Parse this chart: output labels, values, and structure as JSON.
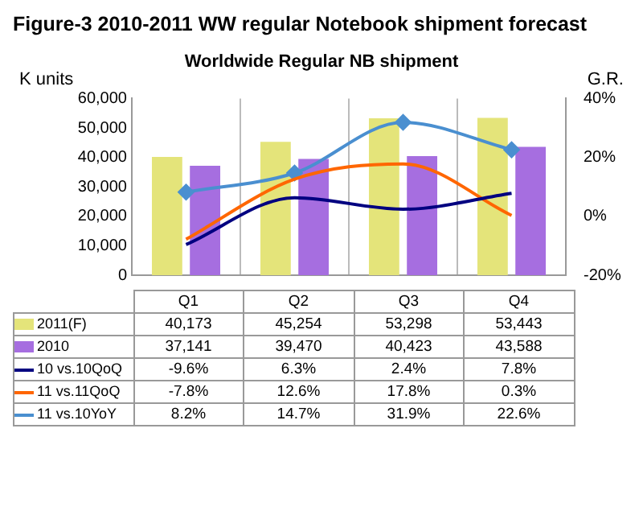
{
  "chart_data": {
    "type": "bar",
    "title": "Figure-3 2010-2011 WW regular Notebook shipment forecast",
    "subtitle": "Worldwide Regular NB shipment",
    "ylabel": "K units",
    "y2label": "G.R.",
    "categories": [
      "Q1",
      "Q2",
      "Q3",
      "Q4"
    ],
    "series": [
      {
        "name": "2011(F)",
        "color": "#e4e47a",
        "values": [
          40173,
          45254,
          53298,
          53443
        ],
        "value_labels": [
          "40,173",
          "45,254",
          "53,298",
          "53,443"
        ]
      },
      {
        "name": "2010",
        "color": "#a66ee0",
        "values": [
          37141,
          39470,
          40423,
          43588
        ],
        "value_labels": [
          "37,141",
          "39,470",
          "40,423",
          "43,588"
        ]
      },
      {
        "name": "10 vs.10QoQ",
        "type": "line",
        "axis": "y2",
        "marker": "none",
        "color": "#000080",
        "values": [
          -9.6,
          6.3,
          2.4,
          7.8
        ],
        "value_labels": [
          "-9.6%",
          "6.3%",
          "2.4%",
          "7.8%"
        ]
      },
      {
        "name": "11 vs.11QoQ",
        "type": "line",
        "axis": "y2",
        "marker": "none",
        "color": "#ff6600",
        "values": [
          -7.8,
          12.6,
          17.8,
          0.3
        ],
        "value_labels": [
          "-7.8%",
          "12.6%",
          "17.8%",
          "0.3%"
        ]
      },
      {
        "name": "11 vs.10YoY",
        "type": "line",
        "axis": "y2",
        "marker": "diamond",
        "color": "#4a8fd0",
        "values": [
          8.2,
          14.7,
          31.9,
          22.6
        ],
        "value_labels": [
          "8.2%",
          "14.7%",
          "31.9%",
          "22.6%"
        ]
      }
    ],
    "ylim": [
      0,
      60000
    ],
    "yticks": [
      {
        "value": 0,
        "label": "0"
      },
      {
        "value": 10000,
        "label": "10,000"
      },
      {
        "value": 20000,
        "label": "20,000"
      },
      {
        "value": 30000,
        "label": "30,000"
      },
      {
        "value": 40000,
        "label": "40,000"
      },
      {
        "value": 50000,
        "label": "50,000"
      },
      {
        "value": 60000,
        "label": "60,000"
      }
    ],
    "y2lim": [
      -20,
      40
    ],
    "y2ticks": [
      {
        "value": -20,
        "label": "-20%"
      },
      {
        "value": 0,
        "label": "0%"
      },
      {
        "value": 20,
        "label": "20%"
      },
      {
        "value": 40,
        "label": "40%"
      }
    ],
    "grid": "x",
    "legend": "bottom"
  }
}
